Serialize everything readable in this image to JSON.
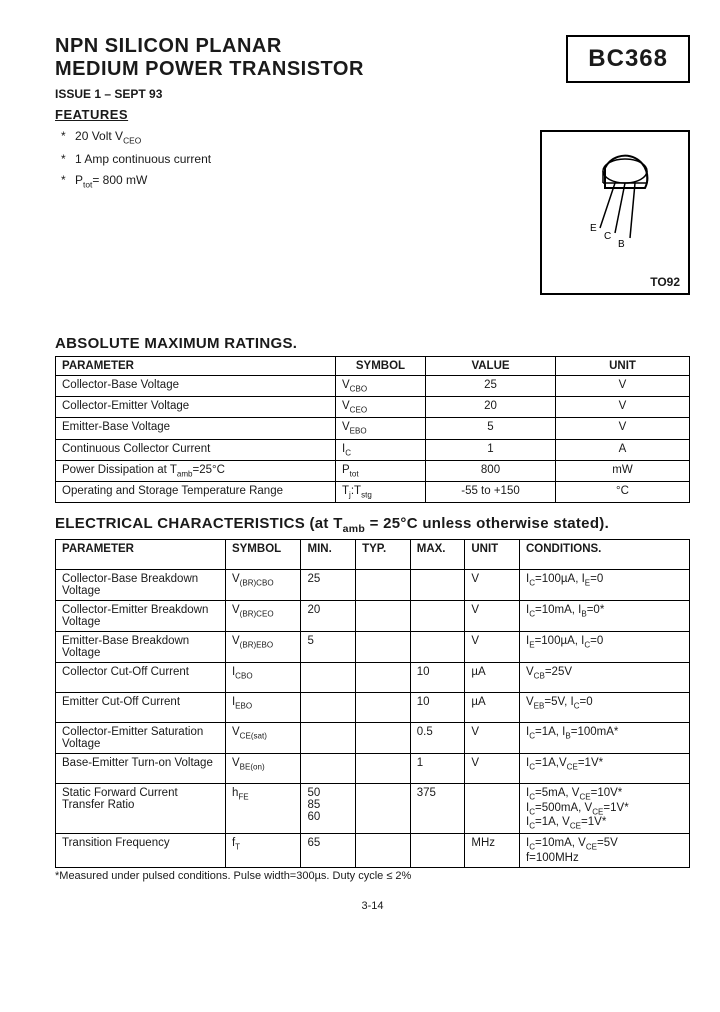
{
  "header": {
    "title_line1": "NPN SILICON PLANAR",
    "title_line2": "MEDIUM POWER TRANSISTOR",
    "part_number": "BC368",
    "issue": "ISSUE 1 – SEPT 93"
  },
  "features": {
    "heading": "FEATURES",
    "items": [
      {
        "html": "20 Volt V<sub>CEO</sub>"
      },
      {
        "html": "1 Amp continuous current"
      },
      {
        "html": "P<sub>tot</sub>= 800 mW"
      }
    ]
  },
  "package": {
    "label": "TO92",
    "pins": [
      "E",
      "C",
      "B"
    ]
  },
  "amr": {
    "title": "ABSOLUTE MAXIMUM RATINGS.",
    "headers": [
      "PARAMETER",
      "SYMBOL",
      "VALUE",
      "UNIT"
    ],
    "rows": [
      {
        "param": "Collector-Base Voltage",
        "sym": "V<sub>CBO</sub>",
        "val": "25",
        "unit": "V"
      },
      {
        "param": "Collector-Emitter Voltage",
        "sym": "V<sub>CEO</sub>",
        "val": "20",
        "unit": "V"
      },
      {
        "param": "Emitter-Base Voltage",
        "sym": "V<sub>EBO</sub>",
        "val": "5",
        "unit": "V"
      },
      {
        "param": "Continuous Collector Current",
        "sym": "I<sub>C</sub>",
        "val": "1",
        "unit": "A"
      },
      {
        "param": "Power Dissipation at T<sub>amb</sub>=25°C",
        "sym": "P<sub>tot</sub>",
        "val": "800",
        "unit": "mW"
      },
      {
        "param": "Operating and Storage Temperature Range",
        "sym": "T<sub>j</sub>:T<sub>stg</sub>",
        "val": "-55 to +150",
        "unit": "°C"
      }
    ]
  },
  "ec": {
    "title_html": "ELECTRICAL CHARACTERISTICS (at T<sub>amb</sub> = 25°C unless otherwise stated).",
    "headers": [
      "PARAMETER",
      "SYMBOL",
      "MIN.",
      "TYP.",
      "MAX.",
      "UNIT",
      "CONDITIONS."
    ],
    "rows": [
      {
        "param": "Collector-Base Breakdown Voltage",
        "sym": "V<sub>(BR)CBO</sub>",
        "min": "25",
        "typ": "",
        "max": "",
        "unit": "V",
        "cond": "I<sub>C</sub>=100µA, I<sub>E</sub>=0"
      },
      {
        "param": "Collector-Emitter Breakdown Voltage",
        "sym": "V<sub>(BR)CEO</sub>",
        "min": "20",
        "typ": "",
        "max": "",
        "unit": "V",
        "cond": "I<sub>C</sub>=10mA, I<sub>B</sub>=0*"
      },
      {
        "param": "Emitter-Base Breakdown Voltage",
        "sym": "V<sub>(BR)EBO</sub>",
        "min": "5",
        "typ": "",
        "max": "",
        "unit": "V",
        "cond": "I<sub>E</sub>=100µA, I<sub>C</sub>=0"
      },
      {
        "param": "Collector Cut-Off Current",
        "sym": "I<sub>CBO</sub>",
        "min": "",
        "typ": "",
        "max": "10",
        "unit": "µA",
        "cond": "V<sub>CB</sub>=25V"
      },
      {
        "param": "Emitter Cut-Off Current",
        "sym": "I<sub>EBO</sub>",
        "min": "",
        "typ": "",
        "max": "10",
        "unit": "µA",
        "cond": "V<sub>EB</sub>=5V, I<sub>C</sub>=0"
      },
      {
        "param": "Collector-Emitter Saturation Voltage",
        "sym": "V<sub>CE(sat)</sub>",
        "min": "",
        "typ": "",
        "max": "0.5",
        "unit": "V",
        "cond": "I<sub>C</sub>=1A, I<sub>B</sub>=100mA*"
      },
      {
        "param": "Base-Emitter Turn-on Voltage",
        "sym": "V<sub>BE(on)</sub>",
        "min": "",
        "typ": "",
        "max": "1",
        "unit": "V",
        "cond": "I<sub>C</sub>=1A,V<sub>CE</sub>=1V*"
      },
      {
        "param": "Static Forward Current Transfer Ratio",
        "sym": "h<sub>FE</sub>",
        "min": "50<br>85<br>60",
        "typ": "",
        "max": "375",
        "unit": "",
        "cond": "I<sub>C</sub>=5mA, V<sub>CE</sub>=10V*<br>I<sub>C</sub>=500mA, V<sub>CE</sub>=1V*<br>I<sub>C</sub>=1A, V<sub>CE</sub>=1V*"
      },
      {
        "param": "Transition Frequency",
        "sym": "f<sub>T</sub>",
        "min": "65",
        "typ": "",
        "max": "",
        "unit": "MHz",
        "cond": "I<sub>C</sub>=10mA, V<sub>CE</sub>=5V<br>f=100MHz"
      }
    ]
  },
  "footnote": "*Measured under pulsed conditions. Pulse width=300µs. Duty cycle ≤ 2%",
  "page_number": "3-14",
  "colors": {
    "text": "#1a1a1a",
    "border": "#000000",
    "background": "#ffffff"
  }
}
